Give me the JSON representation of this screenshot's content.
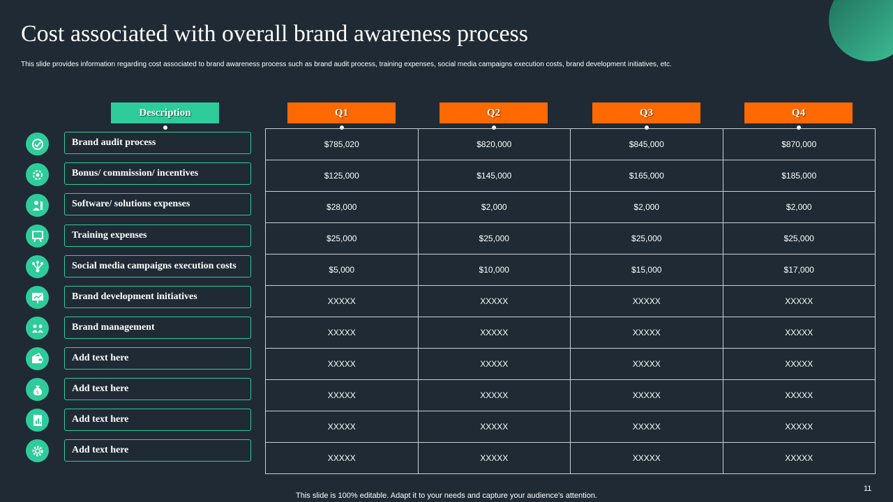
{
  "title": "Cost associated with overall brand awareness process",
  "subtitle": "This slide provides information regarding cost associated to brand awareness process such as brand audit process, training expenses, social media campaigns execution costs, brand development initiatives, etc.",
  "headers": {
    "description": "Description",
    "q1": "Q1",
    "q2": "Q2",
    "q3": "Q3",
    "q4": "Q4"
  },
  "colors": {
    "accent_green": "#2ecc9a",
    "accent_orange": "#ff6a00",
    "background": "#1f2a35"
  },
  "rows": [
    {
      "label": "Brand audit process",
      "icon": "brand-audit-icon",
      "q1": "$785,020",
      "q2": "$820,000",
      "q3": "$845,000",
      "q4": "$870,000"
    },
    {
      "label": "Bonus/ commission/ incentives",
      "icon": "gear-people-icon",
      "q1": "$125,000",
      "q2": "$145,000",
      "q3": "$165,000",
      "q4": "$185,000"
    },
    {
      "label": "Software/ solutions expenses",
      "icon": "software-icon",
      "q1": "$28,000",
      "q2": "$2,000",
      "q3": "$2,000",
      "q4": "$2,000"
    },
    {
      "label": "Training expenses",
      "icon": "training-board-icon",
      "q1": "$25,000",
      "q2": "$25,000",
      "q3": "$25,000",
      "q4": "$25,000"
    },
    {
      "label": "Social media campaigns execution costs",
      "icon": "network-icon",
      "q1": "$5,000",
      "q2": "$10,000",
      "q3": "$15,000",
      "q4": "$17,000"
    },
    {
      "label": "Brand development initiatives",
      "icon": "presentation-icon",
      "q1": "XXXXX",
      "q2": "XXXXX",
      "q3": "XXXXX",
      "q4": "XXXXX"
    },
    {
      "label": "Brand management",
      "icon": "team-icon",
      "q1": "XXXXX",
      "q2": "XXXXX",
      "q3": "XXXXX",
      "q4": "XXXXX"
    },
    {
      "label": "Add text here",
      "icon": "wallet-icon",
      "q1": "XXXXX",
      "q2": "XXXXX",
      "q3": "XXXXX",
      "q4": "XXXXX"
    },
    {
      "label": "Add text here",
      "icon": "money-bag-icon",
      "q1": "XXXXX",
      "q2": "XXXXX",
      "q3": "XXXXX",
      "q4": "XXXXX"
    },
    {
      "label": "Add text here",
      "icon": "document-chart-icon",
      "q1": "XXXXX",
      "q2": "XXXXX",
      "q3": "XXXXX",
      "q4": "XXXXX"
    },
    {
      "label": "Add text here",
      "icon": "settings-icon",
      "q1": "XXXXX",
      "q2": "XXXXX",
      "q3": "XXXXX",
      "q4": "XXXXX"
    }
  ],
  "footer": "This slide is 100% editable. Adapt it to your needs and capture your audience's attention.",
  "page_number": "11"
}
